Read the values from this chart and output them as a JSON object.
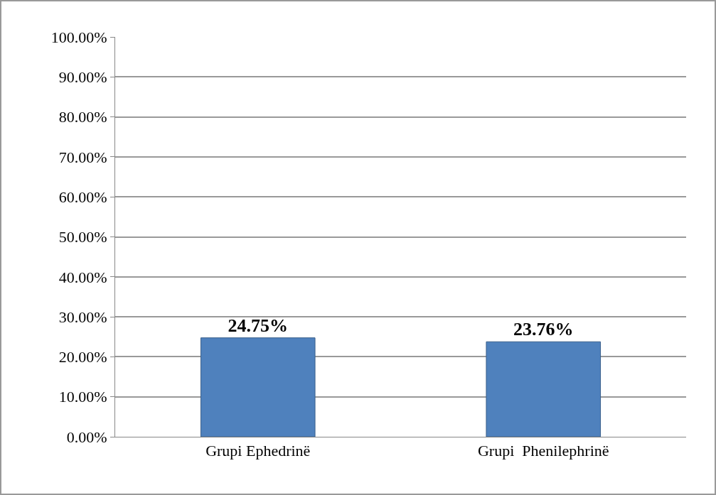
{
  "chart_data": {
    "type": "bar",
    "categories": [
      "Grupi Ephedrinë",
      "Grupi  Phenilephrinë"
    ],
    "values": [
      24.75,
      23.76
    ],
    "value_labels": [
      "24.75%",
      "23.76%"
    ],
    "color": "#4f81bd",
    "ylim": [
      0,
      100
    ],
    "yticks": [
      {
        "value": 0,
        "label": "0.00%"
      },
      {
        "value": 10,
        "label": "10.00%"
      },
      {
        "value": 20,
        "label": "20.00%"
      },
      {
        "value": 30,
        "label": "30.00%"
      },
      {
        "value": 40,
        "label": "40.00%"
      },
      {
        "value": 50,
        "label": "50.00%"
      },
      {
        "value": 60,
        "label": "60.00%"
      },
      {
        "value": 70,
        "label": "70.00%"
      },
      {
        "value": 80,
        "label": "80.00%"
      },
      {
        "value": 90,
        "label": "90.00%"
      },
      {
        "value": 100,
        "label": "100.00%"
      }
    ],
    "grid": true
  }
}
